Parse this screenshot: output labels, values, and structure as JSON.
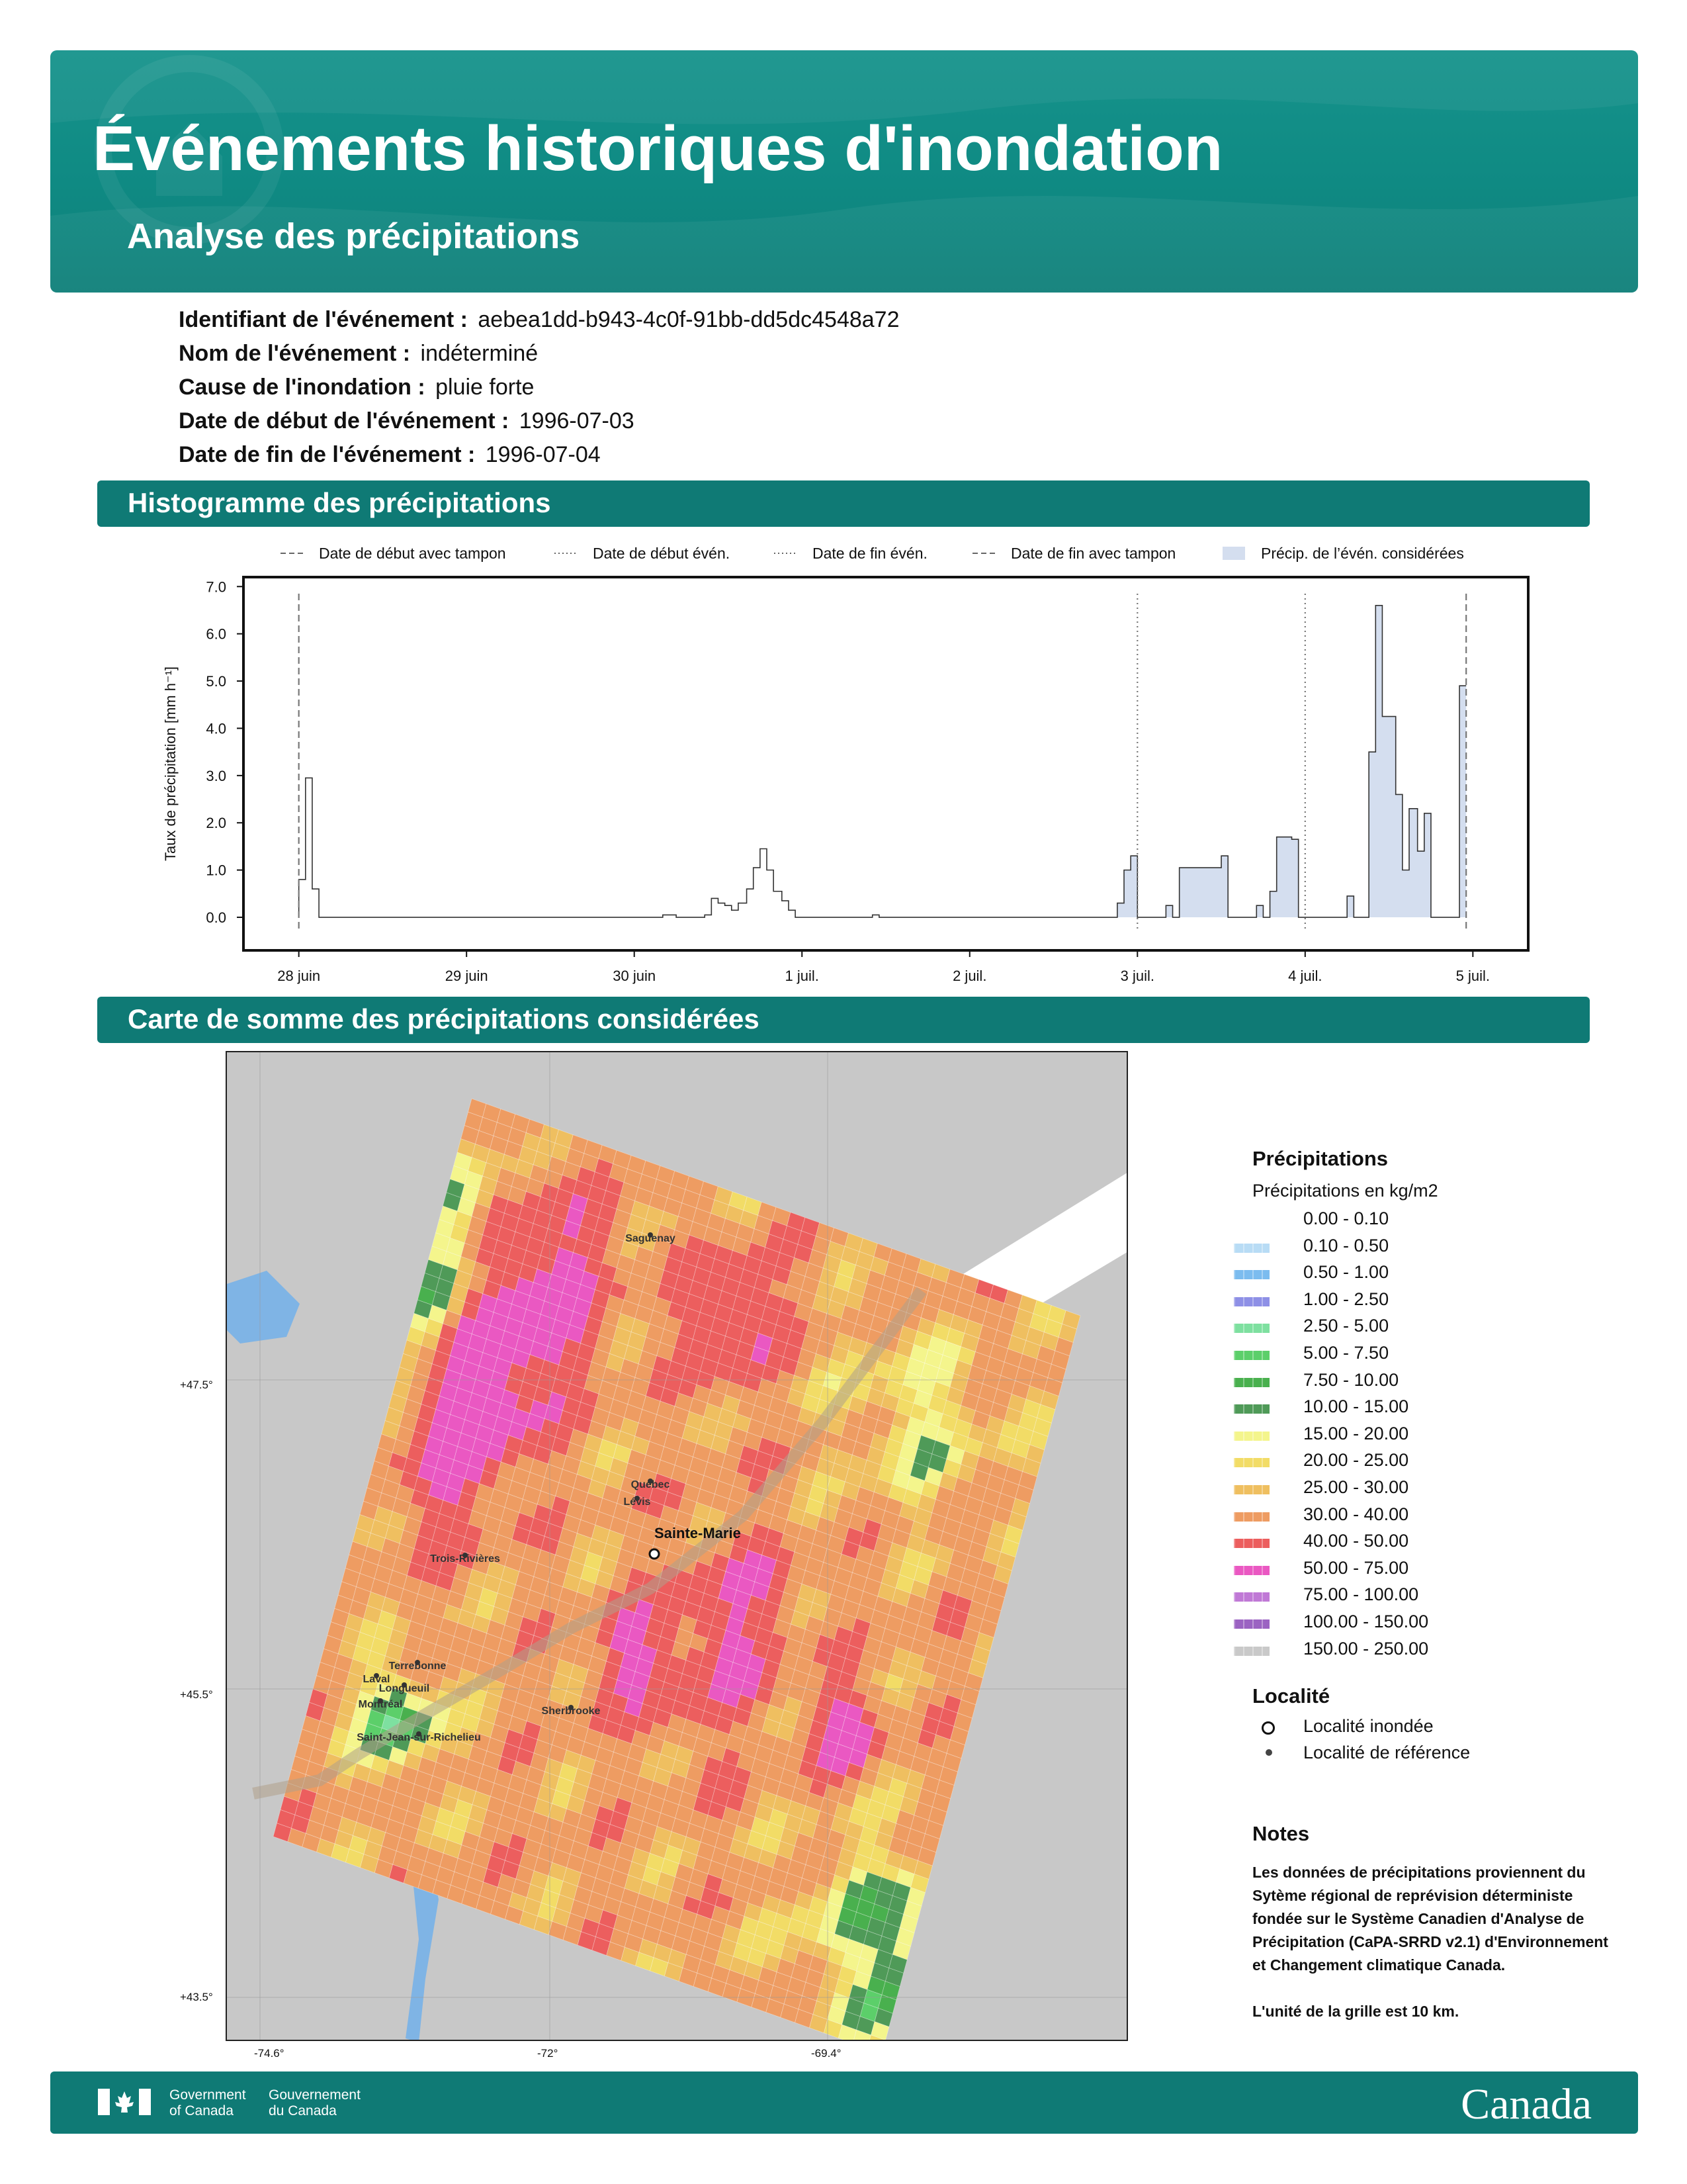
{
  "header": {
    "title": "Événements historiques d'inondation",
    "subtitle": "Analyse des précipitations"
  },
  "event": {
    "id_label": "Identifiant de l'événement :",
    "id_value": "aebea1dd-b943-4c0f-91bb-dd5dc4548a72",
    "name_label": "Nom de l'événement :",
    "name_value": "indéterminé",
    "cause_label": "Cause de l'inondation :",
    "cause_value": "pluie forte",
    "start_label": "Date de début de l'événement :",
    "start_value": "1996-07-03",
    "end_label": "Date de fin de l'événement :",
    "end_value": "1996-07-04"
  },
  "sections": {
    "histogram": "Histogramme des précipitations",
    "map": "Carte de somme des précipitations considérées"
  },
  "chart_data": {
    "type": "step",
    "ylabel": "Taux de précipitation [mm h⁻¹]",
    "ylim": [
      -0.7,
      7.2
    ],
    "y_ticks": [
      "0.0",
      "1.0",
      "2.0",
      "3.0",
      "4.0",
      "5.0",
      "6.0",
      "7.0"
    ],
    "x_ticks": [
      "28 juin",
      "29 juin",
      "30 juin",
      "1 juil.",
      "2 juil.",
      "3 juil.",
      "4 juil.",
      "5 juil."
    ],
    "x_unit": "days from 28 juin 00:00",
    "xlim": [
      -0.33,
      7.33
    ],
    "legend": [
      {
        "label": "Date de début avec tampon",
        "style": "dashed"
      },
      {
        "label": "Date de début évén.",
        "style": "dotted"
      },
      {
        "label": "Date de fin évén.",
        "style": "dotted"
      },
      {
        "label": "Date de fin avec tampon",
        "style": "dashed"
      },
      {
        "label": "Précip. de l’évén. considérées",
        "style": "fill"
      }
    ],
    "vlines": [
      {
        "x": 0.0,
        "style": "dashed"
      },
      {
        "x": 5.0,
        "style": "dotted"
      },
      {
        "x": 6.0,
        "style": "dotted"
      },
      {
        "x": 6.96,
        "style": "dashed"
      }
    ],
    "series": [
      {
        "steps": [
          [
            0.0,
            0.8
          ],
          [
            0.04,
            2.95
          ],
          [
            0.08,
            0.6
          ],
          [
            0.12,
            0.0
          ],
          [
            2.17,
            0.05
          ],
          [
            2.25,
            0.0
          ],
          [
            2.42,
            0.05
          ],
          [
            2.46,
            0.4
          ],
          [
            2.5,
            0.3
          ],
          [
            2.54,
            0.25
          ],
          [
            2.58,
            0.15
          ],
          [
            2.62,
            0.3
          ],
          [
            2.67,
            0.6
          ],
          [
            2.71,
            1.05
          ],
          [
            2.75,
            1.45
          ],
          [
            2.79,
            1.0
          ],
          [
            2.83,
            0.55
          ],
          [
            2.88,
            0.35
          ],
          [
            2.92,
            0.15
          ],
          [
            2.96,
            0.0
          ],
          [
            3.42,
            0.05
          ],
          [
            3.46,
            0.0
          ],
          [
            4.88,
            0.3
          ],
          [
            4.92,
            1.0
          ],
          [
            4.96,
            1.3
          ],
          [
            5.0,
            0.0
          ],
          [
            5.17,
            0.25
          ],
          [
            5.21,
            0.0
          ],
          [
            5.25,
            1.05
          ],
          [
            5.5,
            1.3
          ],
          [
            5.54,
            0.0
          ],
          [
            5.71,
            0.25
          ],
          [
            5.75,
            0.0
          ],
          [
            5.79,
            0.55
          ],
          [
            5.83,
            1.7
          ],
          [
            5.92,
            1.65
          ],
          [
            5.96,
            0.0
          ],
          [
            6.25,
            0.45
          ],
          [
            6.29,
            0.0
          ],
          [
            6.38,
            3.5
          ],
          [
            6.42,
            6.6
          ],
          [
            6.46,
            4.25
          ],
          [
            6.54,
            2.6
          ],
          [
            6.58,
            1.0
          ],
          [
            6.62,
            2.3
          ],
          [
            6.67,
            1.4
          ],
          [
            6.71,
            2.2
          ],
          [
            6.75,
            0.0
          ],
          [
            6.92,
            4.9
          ],
          [
            6.96,
            4.9
          ]
        ]
      }
    ],
    "shaded_range": [
      4.875,
      6.96
    ]
  },
  "map": {
    "lon_ticks": [
      "-74.6°",
      "-72°",
      "-69.4°"
    ],
    "lat_ticks": [
      "+47.5°",
      "+45.5°",
      "+43.5°"
    ],
    "flooded_locality": "Sainte-Marie",
    "reference_localities": [
      "Saguenay",
      "Québec",
      "Lévis",
      "Trois-Rivières",
      "Terrebonne",
      "Laval",
      "Longueuil",
      "Montréal",
      "Sherbrooke",
      "Saint-Jean-sur-Richelieu"
    ]
  },
  "legend": {
    "precip_title": "Précipitations",
    "precip_sub": "Précipitations en kg/m2",
    "bins": [
      {
        "label": "0.00 - 0.10",
        "color": "#ffffff"
      },
      {
        "label": "0.10 - 0.50",
        "color": "#b8dcf5"
      },
      {
        "label": "0.50 - 1.00",
        "color": "#7bbcef"
      },
      {
        "label": "1.00 - 2.50",
        "color": "#8e90e6"
      },
      {
        "label": "2.50 - 5.00",
        "color": "#7ee0a0"
      },
      {
        "label": "5.00 - 7.50",
        "color": "#5ccf6a"
      },
      {
        "label": "7.50 - 10.00",
        "color": "#49b04e"
      },
      {
        "label": "10.00 - 15.00",
        "color": "#4f9a58"
      },
      {
        "label": "15.00 - 20.00",
        "color": "#f4f58c"
      },
      {
        "label": "20.00 - 25.00",
        "color": "#f2dc66"
      },
      {
        "label": "25.00 - 30.00",
        "color": "#efbf60"
      },
      {
        "label": "30.00 - 40.00",
        "color": "#ee9c62"
      },
      {
        "label": "40.00 - 50.00",
        "color": "#ec5e5e"
      },
      {
        "label": "50.00 - 75.00",
        "color": "#ea58c2"
      },
      {
        "label": "75.00 - 100.00",
        "color": "#c079d6"
      },
      {
        "label": "100.00 - 150.00",
        "color": "#9b63c2"
      },
      {
        "label": "150.00 - 250.00",
        "color": "#c9c9c9"
      }
    ],
    "locality_title": "Localité",
    "flooded_label": "Localité inondée",
    "reference_label": "Localité de référence",
    "notes_title": "Notes",
    "notes_body": "Les données de précipitations proviennent du Sytème régional de reprévision déterministe fondée sur le Système Canadien d'Analyse de Précipitation (CaPA-SRRD v2.1) d'Environnement et Changement climatique Canada.",
    "notes_grid": "L'unité de la grille est 10 km."
  },
  "footer": {
    "gov_en_1": "Government",
    "gov_en_2": "of Canada",
    "gov_fr_1": "Gouvernement",
    "gov_fr_2": "du Canada",
    "wordmark": "Canada"
  }
}
